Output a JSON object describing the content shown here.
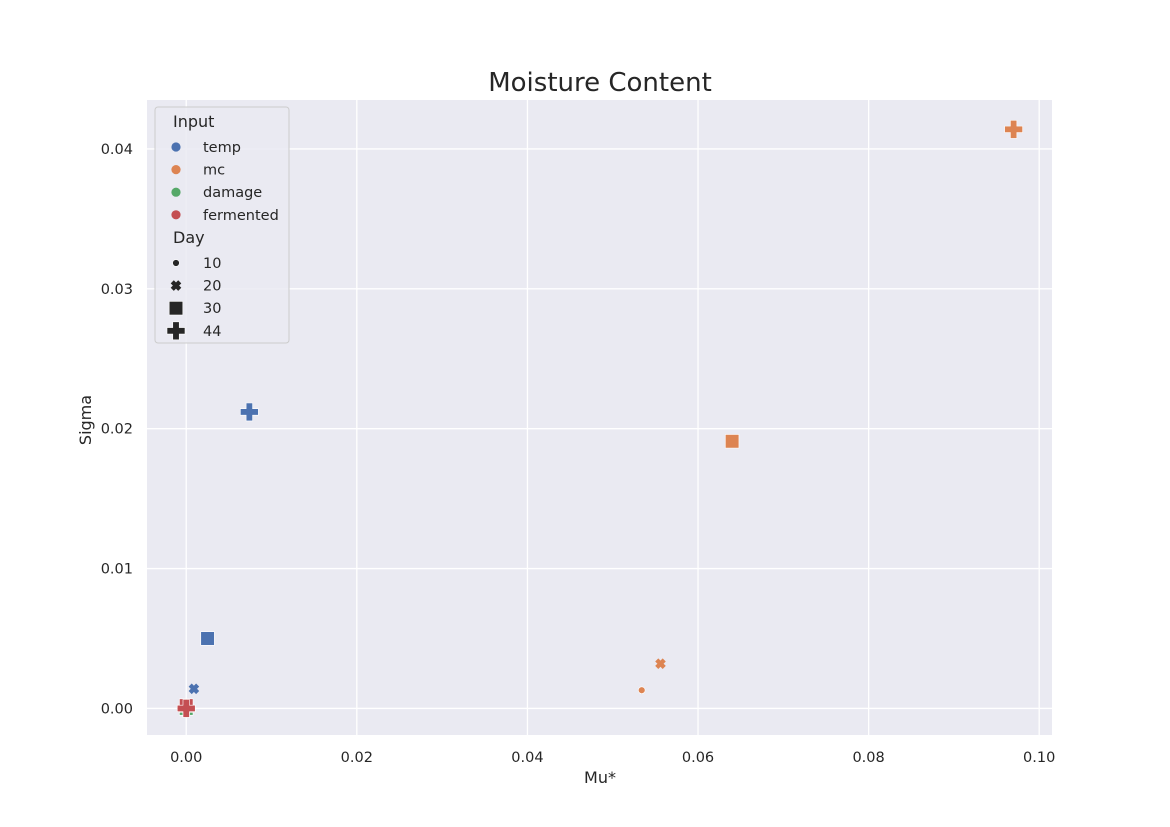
{
  "chart_data": {
    "type": "scatter",
    "title": "Moisture Content",
    "xlabel": "Mu*",
    "ylabel": "Sigma",
    "xlim": [
      -0.0046,
      0.1015
    ],
    "ylim": [
      -0.0019,
      0.0435
    ],
    "xticks": [
      0.0,
      0.02,
      0.04,
      0.06,
      0.08,
      0.1
    ],
    "xtick_labels": [
      "0.00",
      "0.02",
      "0.04",
      "0.06",
      "0.08",
      "0.10"
    ],
    "yticks": [
      0.0,
      0.01,
      0.02,
      0.03,
      0.04
    ],
    "ytick_labels": [
      "0.00",
      "0.01",
      "0.02",
      "0.03",
      "0.04"
    ],
    "grid": true,
    "background": "#eaeaf2",
    "hue_legend": {
      "title": "Input",
      "entries": [
        {
          "label": "temp",
          "color": "#4c72b0"
        },
        {
          "label": "mc",
          "color": "#dd8452"
        },
        {
          "label": "damage",
          "color": "#55a868"
        },
        {
          "label": "fermented",
          "color": "#c44e52"
        }
      ]
    },
    "style_legend": {
      "title": "Day",
      "entries": [
        {
          "label": "10",
          "marker": "circle"
        },
        {
          "label": "20",
          "marker": "x"
        },
        {
          "label": "30",
          "marker": "square"
        },
        {
          "label": "44",
          "marker": "plus"
        }
      ]
    },
    "legend_position": "upper left",
    "points": [
      {
        "input": "temp",
        "day": 10,
        "x": 0.0,
        "y": 0.0
      },
      {
        "input": "temp",
        "day": 20,
        "x": 0.0009,
        "y": 0.0014
      },
      {
        "input": "temp",
        "day": 30,
        "x": 0.0025,
        "y": 0.005
      },
      {
        "input": "temp",
        "day": 44,
        "x": 0.0074,
        "y": 0.0212
      },
      {
        "input": "mc",
        "day": 10,
        "x": 0.0534,
        "y": 0.0013
      },
      {
        "input": "mc",
        "day": 20,
        "x": 0.0556,
        "y": 0.0032
      },
      {
        "input": "mc",
        "day": 30,
        "x": 0.064,
        "y": 0.0191
      },
      {
        "input": "mc",
        "day": 44,
        "x": 0.097,
        "y": 0.0414
      },
      {
        "input": "damage",
        "day": 10,
        "x": 0.0,
        "y": 0.0
      },
      {
        "input": "damage",
        "day": 20,
        "x": 0.0,
        "y": 0.0
      },
      {
        "input": "damage",
        "day": 30,
        "x": 0.0,
        "y": 0.0
      },
      {
        "input": "damage",
        "day": 44,
        "x": 0.0,
        "y": 0.0
      },
      {
        "input": "fermented",
        "day": 10,
        "x": 0.0,
        "y": -0.0003
      },
      {
        "input": "fermented",
        "day": 20,
        "x": 0.0,
        "y": 0.0
      },
      {
        "input": "fermented",
        "day": 30,
        "x": 0.0,
        "y": 0.0002
      },
      {
        "input": "fermented",
        "day": 44,
        "x": 0.0,
        "y": 0.0
      }
    ]
  }
}
